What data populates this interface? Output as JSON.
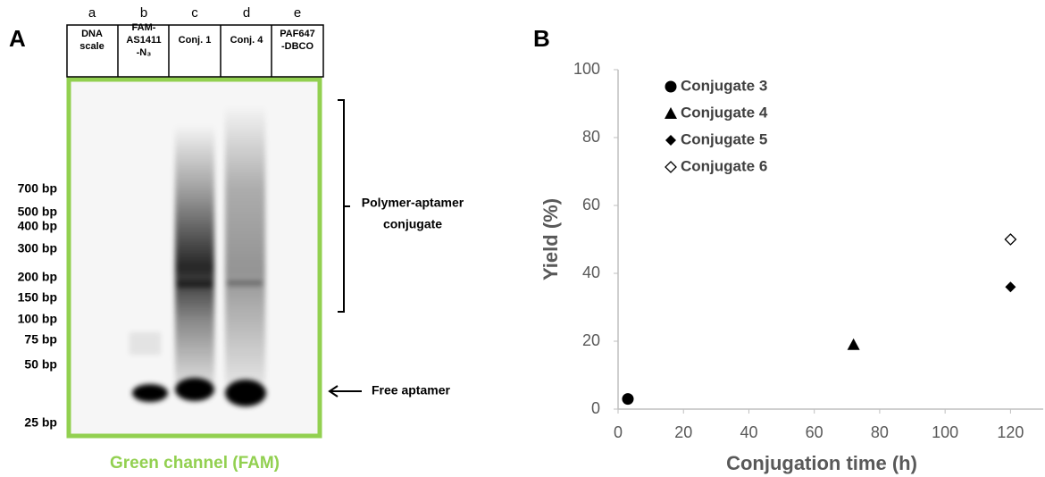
{
  "panel_a": {
    "label": "A",
    "lanes": [
      {
        "letter": "a",
        "header": [
          "DNA",
          "scale"
        ]
      },
      {
        "letter": "b",
        "header": [
          "FAM-",
          "AS1411",
          "-N₃"
        ]
      },
      {
        "letter": "c",
        "header": [
          "Conj. 1"
        ]
      },
      {
        "letter": "d",
        "header": [
          "Conj. 4"
        ]
      },
      {
        "letter": "e",
        "header": [
          "PAF647",
          "-DBCO"
        ]
      }
    ],
    "ladder": [
      "700 bp",
      "500 bp",
      "400 bp",
      "300 bp",
      "200 bp",
      "150 bp",
      "100 bp",
      "75 bp",
      "50 bp",
      "25 bp"
    ],
    "bracket_label": [
      "Polymer-aptamer",
      "conjugate"
    ],
    "arrow_label": "Free aptamer",
    "caption": "Green channel (FAM)"
  },
  "chart_data": {
    "type": "scatter",
    "panel_label": "B",
    "xlabel": "Conjugation time (h)",
    "ylabel": "Yield (%)",
    "xlim": [
      0,
      130
    ],
    "ylim": [
      0,
      100
    ],
    "xticks": [
      0,
      20,
      40,
      60,
      80,
      100,
      120
    ],
    "yticks": [
      0,
      20,
      40,
      60,
      80,
      100
    ],
    "grid": false,
    "series": [
      {
        "name": "Conjugate 3",
        "marker": "circle",
        "color": "#000000",
        "x": [
          3
        ],
        "values": [
          3
        ]
      },
      {
        "name": "Conjugate 4",
        "marker": "triangle",
        "color": "#000000",
        "x": [
          72
        ],
        "values": [
          19
        ]
      },
      {
        "name": "Conjugate 5",
        "marker": "diamond",
        "color": "#000000",
        "x": [
          120
        ],
        "values": [
          36
        ]
      },
      {
        "name": "Conjugate 6",
        "marker": "open-diamond",
        "color": "#000000",
        "x": [
          120
        ],
        "values": [
          50
        ]
      }
    ]
  }
}
